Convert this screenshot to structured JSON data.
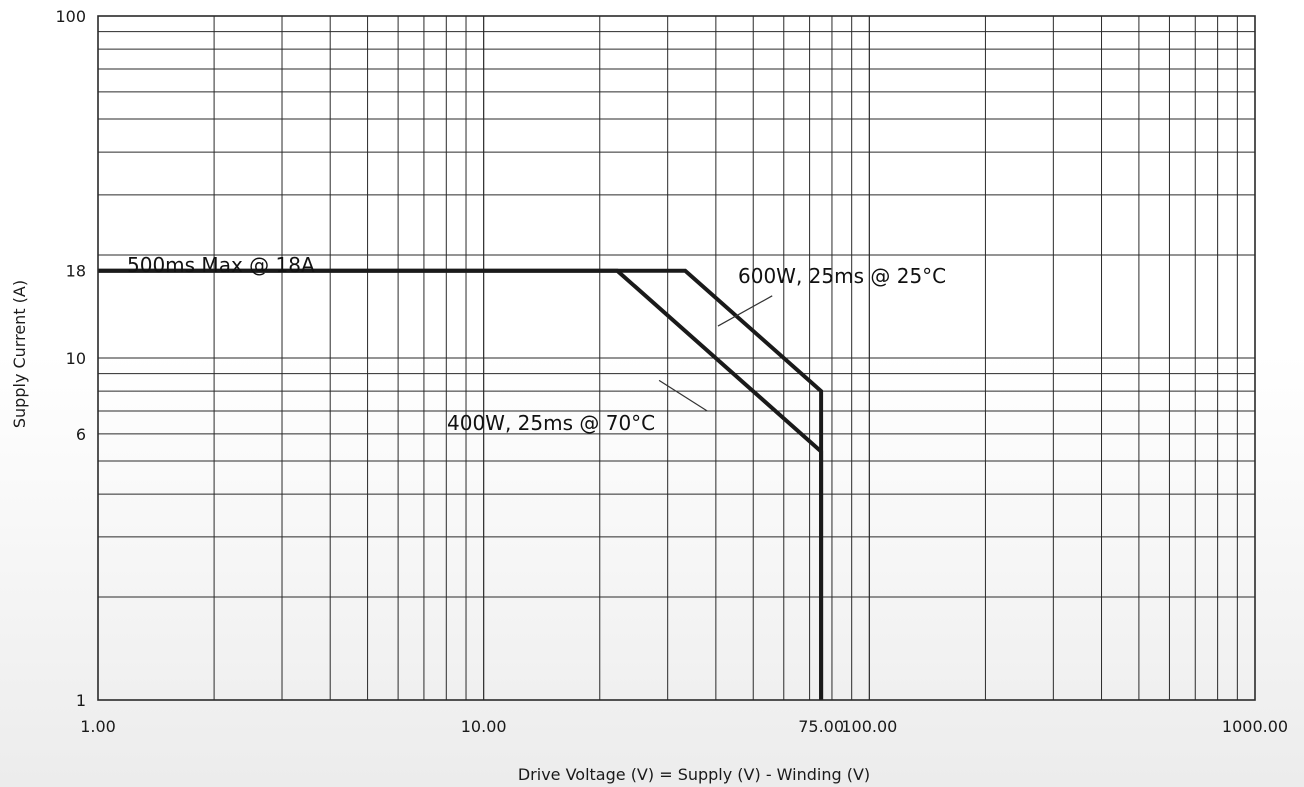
{
  "chart_data": {
    "type": "line",
    "title": "",
    "xlabel": "Drive Voltage (V) = Supply (V) - Winding (V)",
    "ylabel": "Supply Current (A)",
    "x_scale": "log",
    "y_scale": "log",
    "xlim": [
      1,
      1000
    ],
    "ylim": [
      1,
      100
    ],
    "grid": true,
    "x_ticks": [
      {
        "value": 1,
        "label": "1.00"
      },
      {
        "value": 10,
        "label": "10.00"
      },
      {
        "value": 75,
        "label": "75.00"
      },
      {
        "value": 100,
        "label": "100.00"
      },
      {
        "value": 1000,
        "label": "1000.00"
      }
    ],
    "y_ticks": [
      {
        "value": 1,
        "label": "1"
      },
      {
        "value": 6,
        "label": "6"
      },
      {
        "value": 10,
        "label": "10"
      },
      {
        "value": 18,
        "label": "18"
      },
      {
        "value": 100,
        "label": "100"
      }
    ],
    "series": [
      {
        "x": [
          1,
          33.3,
          75,
          75
        ],
        "y": [
          18,
          18,
          8,
          1
        ]
      },
      {
        "x": [
          1,
          22.2,
          75,
          75
        ],
        "y": [
          18,
          18,
          5.33,
          1
        ]
      }
    ],
    "annotations": [
      {
        "text": "500ms Max @ 18A"
      },
      {
        "text": "600W, 25ms @ 25°C"
      },
      {
        "text": "400W, 25ms @ 70°C"
      }
    ],
    "colors": {
      "grid": "#2a2a2a",
      "line": "#1a1a1a",
      "frame": "#2a2a2a"
    }
  }
}
